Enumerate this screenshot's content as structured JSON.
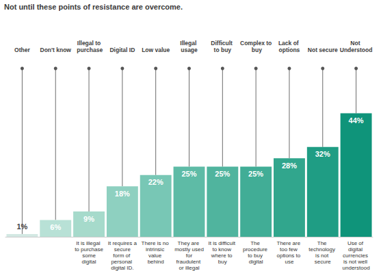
{
  "chart_data": {
    "type": "bar",
    "subtitle": "Not until these points of resistance are overcome.",
    "categories": [
      "Other",
      "Don't know",
      "Illegal to purchase",
      "Digital ID",
      "Low value",
      "Illegal usage",
      "Difficult to buy",
      "Complex to buy",
      "Lack of options",
      "Not secure",
      "Not Understood"
    ],
    "descriptions": [
      null,
      null,
      "It is illegal to purchase some digital",
      "It requires a secure form of personal digital ID.",
      "There is no intrinsic value behind",
      "They are mostly used for fraudulent or illegal",
      "It is difficult to know where to buy",
      "The procedure to buy digital",
      "There are too few options to use",
      "The technology is not secure",
      "Use of digital currencies is not well understood"
    ],
    "values": [
      1,
      6,
      9,
      18,
      22,
      25,
      25,
      25,
      28,
      32,
      44
    ],
    "value_labels": [
      "1%",
      "6%",
      "9%",
      "18%",
      "22%",
      "25%",
      "25%",
      "25%",
      "28%",
      "32%",
      "44%"
    ],
    "colors": [
      "#d3e8e3",
      "#b8e1d6",
      "#a6dacb",
      "#8ed0c0",
      "#78c7b5",
      "#5ebba6",
      "#50b49e",
      "#41ad96",
      "#31a68d",
      "#1f9d84",
      "#0f947a"
    ],
    "ylim": [
      0,
      60
    ],
    "yticks": [
      0,
      20,
      40,
      60
    ],
    "grid": false,
    "data_labels": true,
    "tick_labels": false
  }
}
